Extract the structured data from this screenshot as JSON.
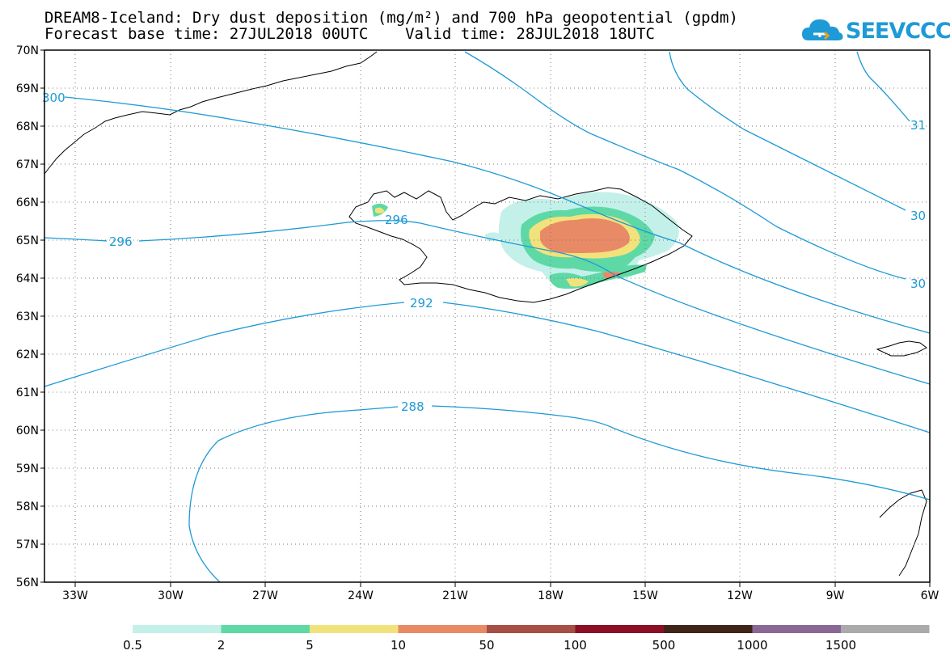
{
  "title_line1": "DREAM8-Iceland: Dry dust deposition (mg/m²) and 700 hPa geopotential (gpdm)",
  "title_line2": "Forecast base time: 27JUL2018 00UTC    Valid time: 28JUL2018 18UTC",
  "logo_text": "SEEVCCC",
  "map": {
    "lat_labels": [
      "70N",
      "69N",
      "68N",
      "67N",
      "66N",
      "65N",
      "64N",
      "63N",
      "62N",
      "61N",
      "60N",
      "59N",
      "58N",
      "57N",
      "56N"
    ],
    "lon_labels": [
      "33W",
      "30W",
      "27W",
      "24W",
      "21W",
      "18W",
      "15W",
      "12W",
      "9W",
      "6W"
    ],
    "lat_range": [
      56,
      70
    ],
    "lon_range": [
      -34.4,
      -6
    ],
    "grid": true,
    "contour_color": "#1e9ad6",
    "contour_labels": [
      "300",
      "296",
      "296",
      "292",
      "288",
      "31",
      "30",
      "30"
    ]
  },
  "legend": {
    "labels": [
      "0.5",
      "2",
      "5",
      "10",
      "50",
      "100",
      "500",
      "1000",
      "1500"
    ],
    "colors": [
      "#c4f0ea",
      "#5ed9a6",
      "#f2e27c",
      "#e98a66",
      "#a64f45",
      "#8b0e25",
      "#3e2518",
      "#8a6896",
      "#aaaaaa"
    ]
  }
}
